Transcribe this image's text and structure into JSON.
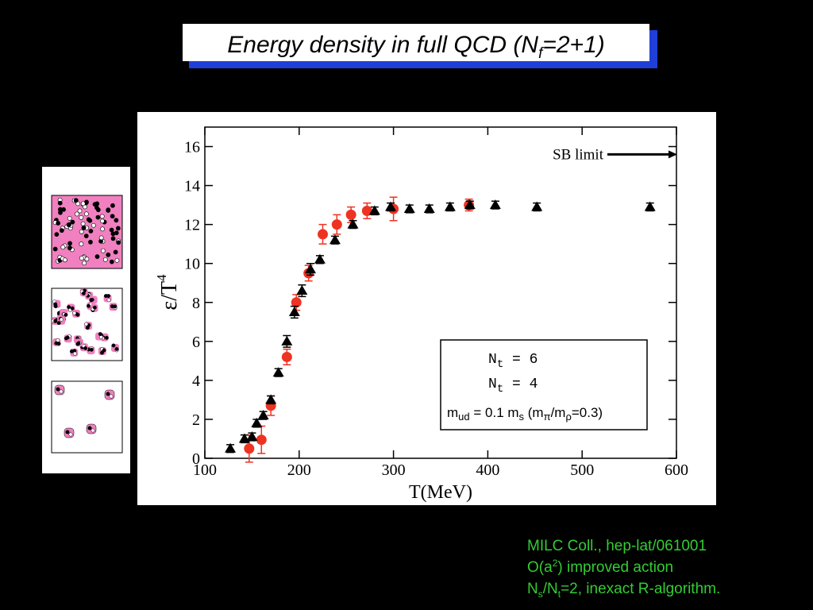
{
  "slide": {
    "title": {
      "main": "Energy density in full QCD (N",
      "sub": "f",
      "tail": "=2+1)"
    },
    "credits": [
      {
        "text": "MILC Coll., hep-lat/061001"
      },
      {
        "a": "O(a",
        "sup": "2",
        "b": ") improved action"
      },
      {
        "a": "N",
        "sub1": "s",
        "b": "/N",
        "sub2": "t",
        "c": "=2, inexact R-algorithm."
      }
    ]
  },
  "chart_data": {
    "type": "scatter",
    "xlabel": "T(MeV)",
    "ylabel": {
      "main": "ε/T",
      "sup": "4"
    },
    "xlim": [
      100,
      600
    ],
    "xticks": [
      100,
      200,
      300,
      400,
      500,
      600
    ],
    "ylim": [
      0,
      17
    ],
    "yticks": [
      0,
      2,
      4,
      6,
      8,
      10,
      12,
      14,
      16
    ],
    "annotation": {
      "text": "SB limit",
      "y": 15.6
    },
    "note": {
      "a": "m",
      "s1": "ud",
      "b": " = 0.1 m",
      "s2": "s",
      "c": "  (m",
      "s3": "π",
      "d": "/m",
      "s4": "ρ",
      "e": "=0.3)"
    },
    "series": [
      {
        "name": {
          "main": "N",
          "sub": "t",
          "tail": " = 6"
        },
        "marker": "circle",
        "color": "#ee3322",
        "x": [
          147,
          160,
          170,
          187,
          197,
          210,
          225,
          240,
          255,
          272,
          300,
          380
        ],
        "values": [
          0.5,
          0.95,
          2.7,
          5.2,
          8.0,
          9.5,
          11.5,
          12.0,
          12.5,
          12.7,
          12.8,
          13.0
        ],
        "errors": [
          0.7,
          0.7,
          0.5,
          0.4,
          0.4,
          0.4,
          0.5,
          0.5,
          0.4,
          0.4,
          0.6,
          0.3
        ]
      },
      {
        "name": {
          "main": "N",
          "sub": "t",
          "tail": " = 4"
        },
        "marker": "triangle",
        "color": "#000000",
        "x": [
          127,
          142,
          150,
          155,
          162,
          170,
          178,
          187,
          195,
          203,
          212,
          222,
          238,
          257,
          280,
          297,
          317,
          338,
          360,
          381,
          408,
          452,
          572
        ],
        "values": [
          0.5,
          1.0,
          1.1,
          1.8,
          2.2,
          3.0,
          4.4,
          6.0,
          7.5,
          8.6,
          9.7,
          10.2,
          11.2,
          12.0,
          12.7,
          12.9,
          12.8,
          12.8,
          12.9,
          13.0,
          13.0,
          12.9,
          12.9
        ],
        "errors": [
          0.2,
          0.2,
          0.2,
          0.2,
          0.2,
          0.2,
          0.2,
          0.3,
          0.3,
          0.3,
          0.3,
          0.2,
          0.2,
          0.2,
          0.2,
          0.2,
          0.2,
          0.2,
          0.2,
          0.2,
          0.2,
          0.2,
          0.2
        ]
      }
    ]
  }
}
